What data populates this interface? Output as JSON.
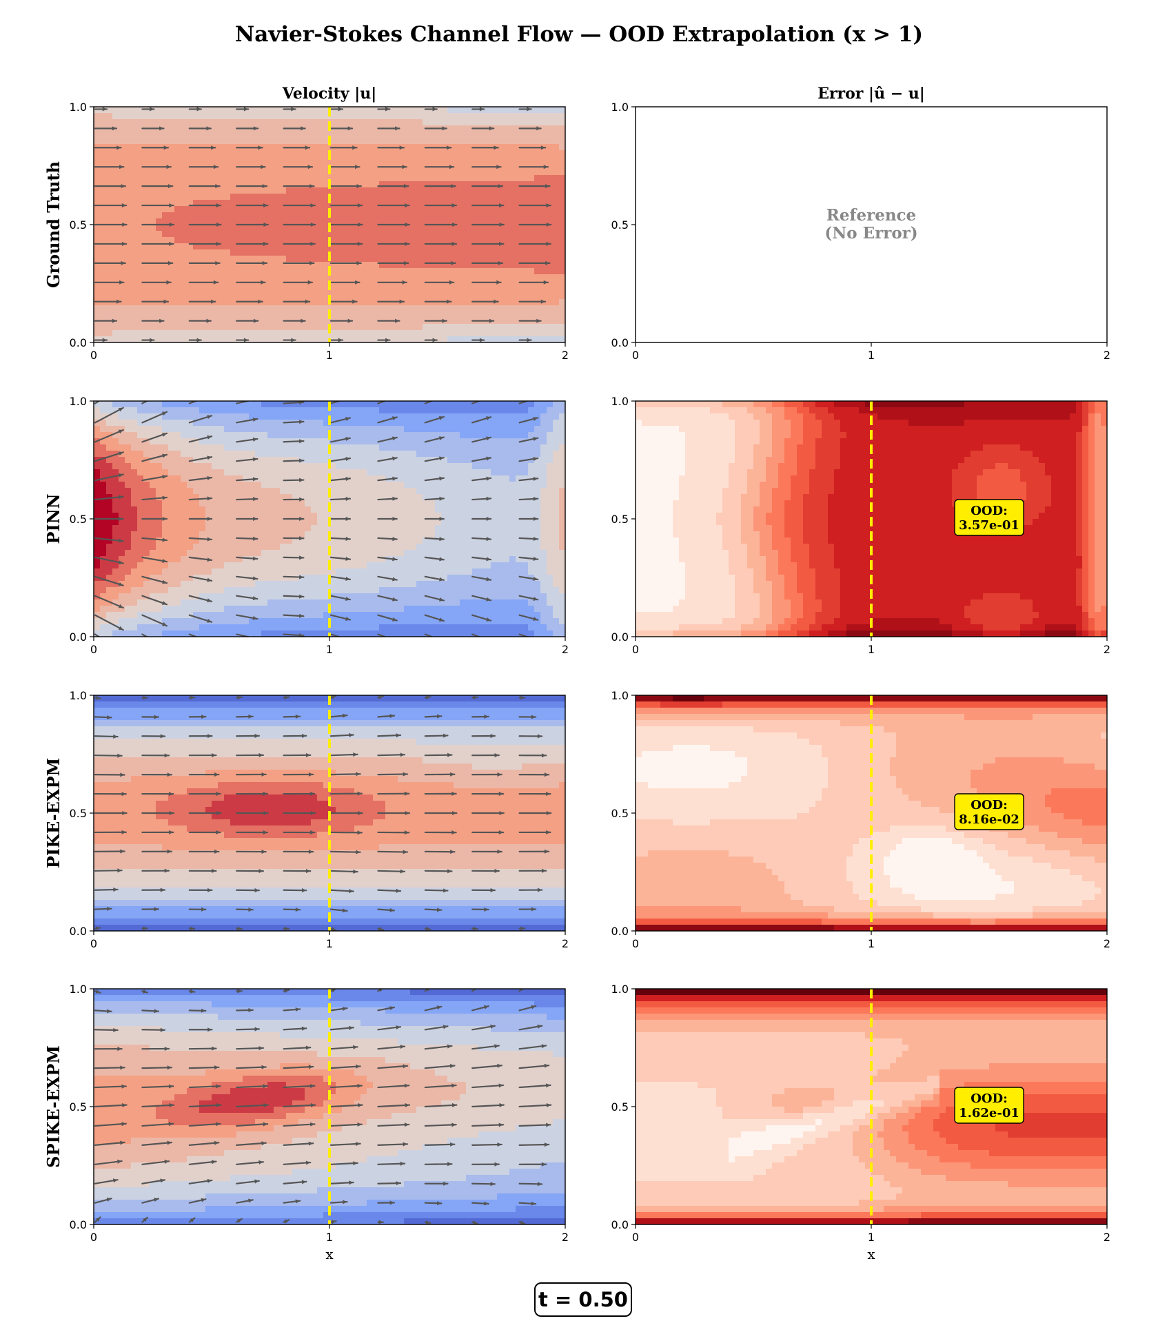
{
  "figure": {
    "title": "Navier-Stokes Channel Flow — OOD Extrapolation (x > 1)",
    "time_label": "t = 0.50"
  },
  "chart_data": [
    {
      "type": "heatmap",
      "panel": "ground-truth-velocity",
      "row_label": "Ground Truth",
      "col_title": "Velocity |u|",
      "colormap": "coolwarm",
      "xlim": [
        0,
        2
      ],
      "ylim": [
        0,
        1
      ],
      "xticks": [
        "0",
        "1",
        "2"
      ],
      "yticks": [
        "0.0",
        "0.5",
        "1.0"
      ],
      "xlabel": "",
      "ood_boundary_x": 1,
      "field": "ground_truth",
      "quiver": true
    },
    {
      "type": "heatmap",
      "panel": "ground-truth-error",
      "col_title": "Error |û − u|",
      "xlim": [
        0,
        2
      ],
      "ylim": [
        0,
        1
      ],
      "xticks": [
        "0",
        "1",
        "2"
      ],
      "yticks": [
        "0.0",
        "0.5",
        "1.0"
      ],
      "xlabel": "",
      "empty": true,
      "annotation": [
        "Reference",
        "(No Error)"
      ]
    },
    {
      "type": "heatmap",
      "panel": "pinn-velocity",
      "row_label": "PINN",
      "colormap": "coolwarm",
      "xlim": [
        0,
        2
      ],
      "ylim": [
        0,
        1
      ],
      "xticks": [
        "0",
        "1",
        "2"
      ],
      "yticks": [
        "0.0",
        "0.5",
        "1.0"
      ],
      "xlabel": "",
      "ood_boundary_x": 1,
      "field": "pinn",
      "quiver": true
    },
    {
      "type": "heatmap",
      "panel": "pinn-error",
      "colormap": "Reds",
      "xlim": [
        0,
        2
      ],
      "ylim": [
        0,
        1
      ],
      "xticks": [
        "0",
        "1",
        "2"
      ],
      "yticks": [
        "0.0",
        "0.5",
        "1.0"
      ],
      "xlabel": "",
      "ood_boundary_x": 1,
      "field": "pinn_error",
      "ood_label": "OOD:",
      "ood_error": "3.57e-01"
    },
    {
      "type": "heatmap",
      "panel": "pike-velocity",
      "row_label": "PIKE-EXPM",
      "colormap": "coolwarm",
      "xlim": [
        0,
        2
      ],
      "ylim": [
        0,
        1
      ],
      "xticks": [
        "0",
        "1",
        "2"
      ],
      "yticks": [
        "0.0",
        "0.5",
        "1.0"
      ],
      "xlabel": "",
      "ood_boundary_x": 1,
      "field": "pike",
      "quiver": true
    },
    {
      "type": "heatmap",
      "panel": "pike-error",
      "colormap": "Reds",
      "xlim": [
        0,
        2
      ],
      "ylim": [
        0,
        1
      ],
      "xticks": [
        "0",
        "1",
        "2"
      ],
      "yticks": [
        "0.0",
        "0.5",
        "1.0"
      ],
      "xlabel": "",
      "ood_boundary_x": 1,
      "field": "pike_error",
      "ood_label": "OOD:",
      "ood_error": "8.16e-02"
    },
    {
      "type": "heatmap",
      "panel": "spike-velocity",
      "row_label": "SPIKE-EXPM",
      "colormap": "coolwarm",
      "xlim": [
        0,
        2
      ],
      "ylim": [
        0,
        1
      ],
      "xticks": [
        "0",
        "1",
        "2"
      ],
      "yticks": [
        "0.0",
        "0.5",
        "1.0"
      ],
      "xlabel": "x",
      "ood_boundary_x": 1,
      "field": "spike",
      "quiver": true
    },
    {
      "type": "heatmap",
      "panel": "spike-error",
      "colormap": "Reds",
      "xlim": [
        0,
        2
      ],
      "ylim": [
        0,
        1
      ],
      "xticks": [
        "0",
        "1",
        "2"
      ],
      "yticks": [
        "0.0",
        "0.5",
        "1.0"
      ],
      "xlabel": "x",
      "ood_boundary_x": 1,
      "field": "spike_error",
      "ood_label": "OOD:",
      "ood_error": "1.62e-01"
    }
  ],
  "colors": {
    "ood_boundary": "#ffee00",
    "annotation_box": "#ffee00",
    "arrow": "#555555"
  }
}
